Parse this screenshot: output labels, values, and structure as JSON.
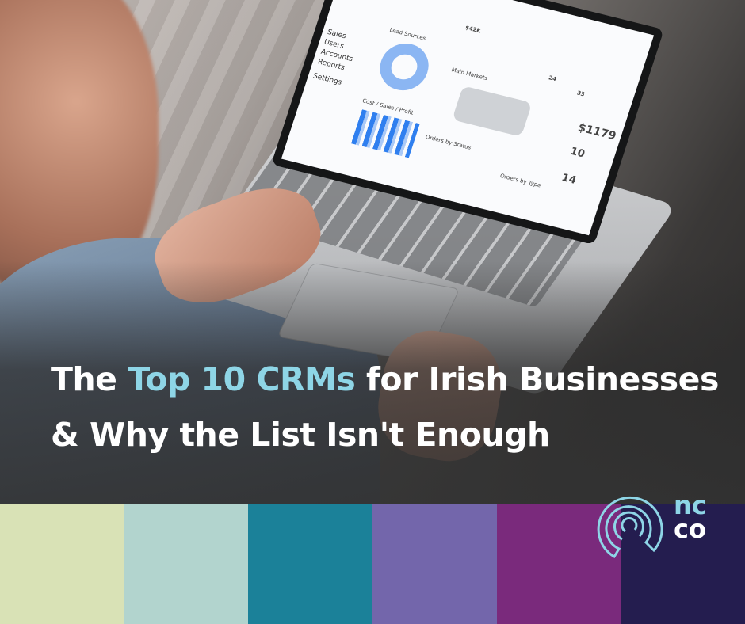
{
  "headline": {
    "line1_pre": "The ",
    "line1_highlight": "Top 10 CRMs",
    "line1_post": " for Irish Businesses",
    "line2": "& Why the List Isn't Enough",
    "highlight_color": "#8ed5e6"
  },
  "color_bars": [
    "#d9e2b6",
    "#b2d4ce",
    "#1b8199",
    "#7366ab",
    "#7a2a7c",
    "#241d4f"
  ],
  "logo": {
    "line1": "nc",
    "line2": "co",
    "line1_color": "#8ed5e6",
    "line2_color": "#ffffff"
  },
  "dashboard": {
    "sidebar": [
      "Sales",
      "Users",
      "Accounts",
      "Reports",
      "Settings"
    ],
    "expected_sales_value": "$42K",
    "this_month_orders_value": "24",
    "expected_orders_value": "33",
    "avg_order_value": "$1179",
    "lead_sources_title": "Lead Sources",
    "main_markets_title": "Main Markets",
    "cost_sales_profit_title": "Cost / Sales / Profit",
    "orders_by_status_title": "Orders by Status",
    "orders_by_type_title": "Orders by Type",
    "new_customers": "10",
    "returning_clients": "14"
  }
}
